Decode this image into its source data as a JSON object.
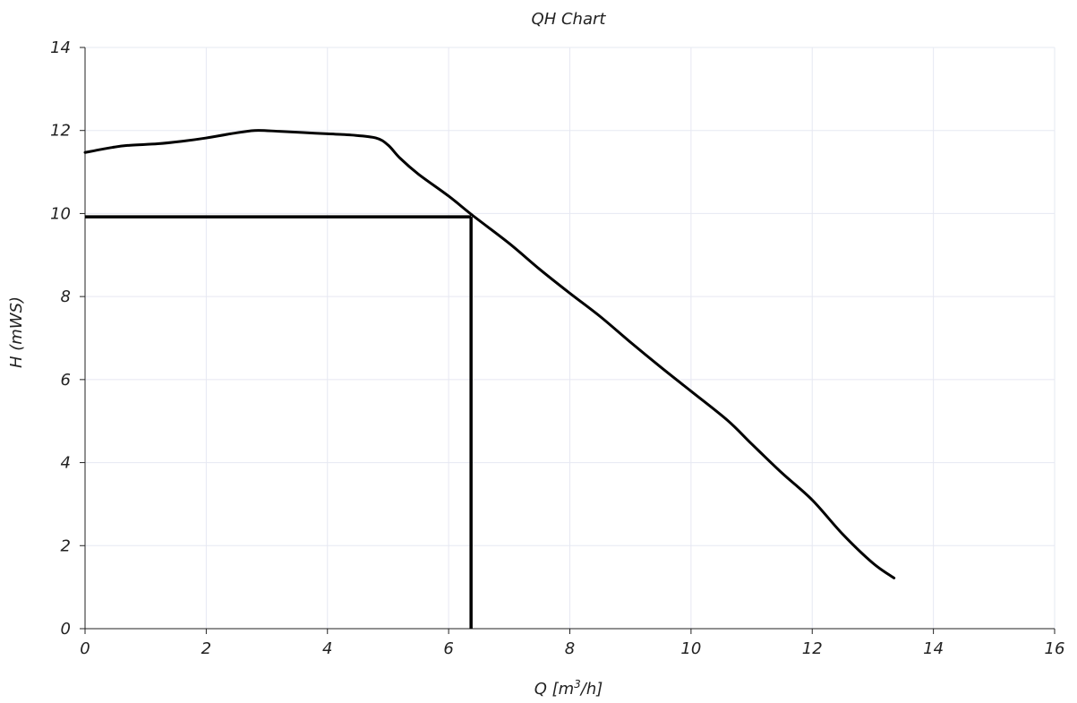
{
  "chart_data": {
    "type": "line",
    "title": "QH Chart",
    "xlabel": "Q [m³/h]",
    "ylabel": "H (mWS)",
    "xlim": [
      0,
      16
    ],
    "ylim": [
      0,
      14
    ],
    "x_ticks": [
      "0",
      "2",
      "4",
      "6",
      "8",
      "10",
      "12",
      "14",
      "16"
    ],
    "y_ticks": [
      "0",
      "2",
      "4",
      "6",
      "8",
      "10",
      "12",
      "14"
    ],
    "grid": true,
    "series": [
      {
        "points": [
          [
            0,
            11.47
          ],
          [
            0.4,
            11.58
          ],
          [
            0.7,
            11.64
          ],
          [
            1.2,
            11.68
          ],
          [
            1.6,
            11.74
          ],
          [
            2.0,
            11.82
          ],
          [
            2.4,
            11.92
          ],
          [
            2.8,
            12.0
          ],
          [
            3.2,
            11.98
          ],
          [
            3.6,
            11.95
          ],
          [
            4.0,
            11.92
          ],
          [
            4.4,
            11.89
          ],
          [
            4.8,
            11.82
          ],
          [
            5.0,
            11.65
          ],
          [
            5.2,
            11.33
          ],
          [
            5.5,
            10.95
          ],
          [
            6.0,
            10.42
          ],
          [
            6.4,
            9.95
          ],
          [
            7.0,
            9.28
          ],
          [
            7.5,
            8.66
          ],
          [
            8.0,
            8.08
          ],
          [
            8.5,
            7.52
          ],
          [
            9.0,
            6.9
          ],
          [
            9.5,
            6.3
          ],
          [
            10.0,
            5.72
          ],
          [
            10.6,
            5.02
          ],
          [
            11.0,
            4.45
          ],
          [
            11.5,
            3.75
          ],
          [
            12.0,
            3.1
          ],
          [
            12.5,
            2.28
          ],
          [
            13.0,
            1.58
          ],
          [
            13.35,
            1.22
          ]
        ]
      }
    ],
    "operating_point": {
      "q": 6.37,
      "h": 9.92
    },
    "colors": {
      "curve": "#000000",
      "grid": "#e6e8f2",
      "axis": "#222222",
      "text": "#222222"
    }
  }
}
